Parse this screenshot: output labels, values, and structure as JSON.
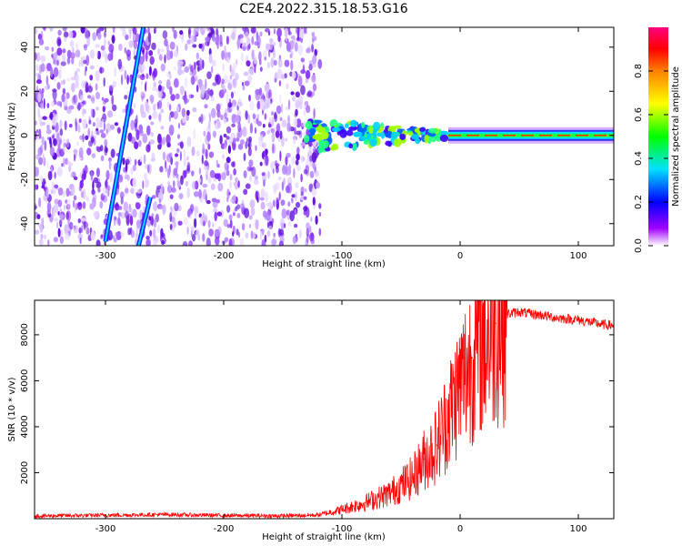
{
  "title": "C2E4.2022.315.18.53.G16",
  "chart_data": [
    {
      "type": "heatmap",
      "xlabel": "Height of straight line (km)",
      "ylabel": "Frequency (Hz)",
      "xlim": [
        -360,
        130
      ],
      "ylim": [
        -50,
        49
      ],
      "x_ticks": [
        -300,
        -200,
        -100,
        0,
        100
      ],
      "y_ticks": [
        -40,
        -20,
        0,
        20,
        40
      ],
      "colorbar": {
        "label": "Normalized spectral amplitude",
        "range": [
          0,
          1
        ],
        "ticks": [
          "0.0",
          "0.2",
          "0.4",
          "0.6",
          "0.8"
        ],
        "colors": [
          "#ffffff",
          "#a000ff",
          "#0000ff",
          "#00e0ff",
          "#00ff00",
          "#ffff00",
          "#ff8000",
          "#ff0000",
          "#ff0080"
        ]
      },
      "features": {
        "noise_region_x": [
          -360,
          -130
        ],
        "carrier_frequency_hz": 0,
        "scattered_blobs_x": [
          -130,
          -10
        ],
        "doppler_trace_1": {
          "x": [
            -300,
            -268
          ],
          "y": [
            -48,
            49
          ]
        },
        "doppler_trace_2": {
          "x": [
            -272,
            -262
          ],
          "y": [
            -50,
            -28
          ]
        }
      }
    },
    {
      "type": "line",
      "xlabel": "Height of straight line (km)",
      "ylabel": "SNR (10 * v/v)",
      "xlim": [
        -360,
        130
      ],
      "ylim": [
        0,
        9500
      ],
      "x_ticks": [
        -300,
        -200,
        -100,
        0,
        100
      ],
      "y_ticks": [
        2000,
        4000,
        6000,
        8000
      ],
      "series": [
        {
          "color": "#ff0000",
          "x": [
            -360,
            -300,
            -250,
            -200,
            -150,
            -120,
            -100,
            -80,
            -60,
            -40,
            -30,
            -20,
            -10,
            0,
            10,
            20,
            30,
            40,
            50,
            60,
            70,
            80,
            90,
            100,
            110,
            120,
            130
          ],
          "y": [
            120,
            150,
            180,
            140,
            120,
            160,
            400,
            700,
            1100,
            1800,
            2600,
            3200,
            4500,
            5800,
            7000,
            7800,
            8500,
            8900,
            9000,
            8900,
            8850,
            8750,
            8700,
            8650,
            8550,
            8450,
            8400
          ]
        }
      ]
    }
  ]
}
